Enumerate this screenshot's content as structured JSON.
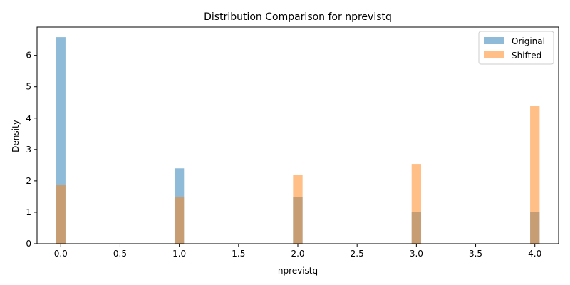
{
  "chart_data": {
    "type": "bar",
    "title": "Distribution Comparison for nprevistq",
    "xlabel": "nprevistq",
    "ylabel": "Density",
    "xlim": [
      -0.2,
      4.2
    ],
    "ylim": [
      0,
      6.9
    ],
    "xticks": [
      0.0,
      0.5,
      1.0,
      1.5,
      2.0,
      2.5,
      3.0,
      3.5,
      4.0
    ],
    "xtick_labels": [
      "0.0",
      "0.5",
      "1.0",
      "1.5",
      "2.0",
      "2.5",
      "3.0",
      "3.5",
      "4.0"
    ],
    "yticks": [
      0,
      1,
      2,
      3,
      4,
      5,
      6
    ],
    "ytick_labels": [
      "0",
      "1",
      "2",
      "3",
      "4",
      "5",
      "6"
    ],
    "bar_width": 0.08,
    "grid": false,
    "legend_position": "top-right",
    "series": [
      {
        "name": "Original",
        "color": "#1f77b4",
        "opacity": 0.5,
        "bins": [
          {
            "x": 0.0,
            "value": 6.58
          },
          {
            "x": 1.0,
            "value": 2.4
          },
          {
            "x": 2.0,
            "value": 1.48
          },
          {
            "x": 3.0,
            "value": 1.0
          },
          {
            "x": 4.0,
            "value": 1.02
          }
        ]
      },
      {
        "name": "Shifted",
        "color": "#ff7f0e",
        "opacity": 0.5,
        "bins": [
          {
            "x": 0.0,
            "value": 1.88
          },
          {
            "x": 1.0,
            "value": 1.48
          },
          {
            "x": 2.0,
            "value": 2.2
          },
          {
            "x": 3.0,
            "value": 2.54
          },
          {
            "x": 4.0,
            "value": 4.38
          }
        ]
      }
    ]
  }
}
